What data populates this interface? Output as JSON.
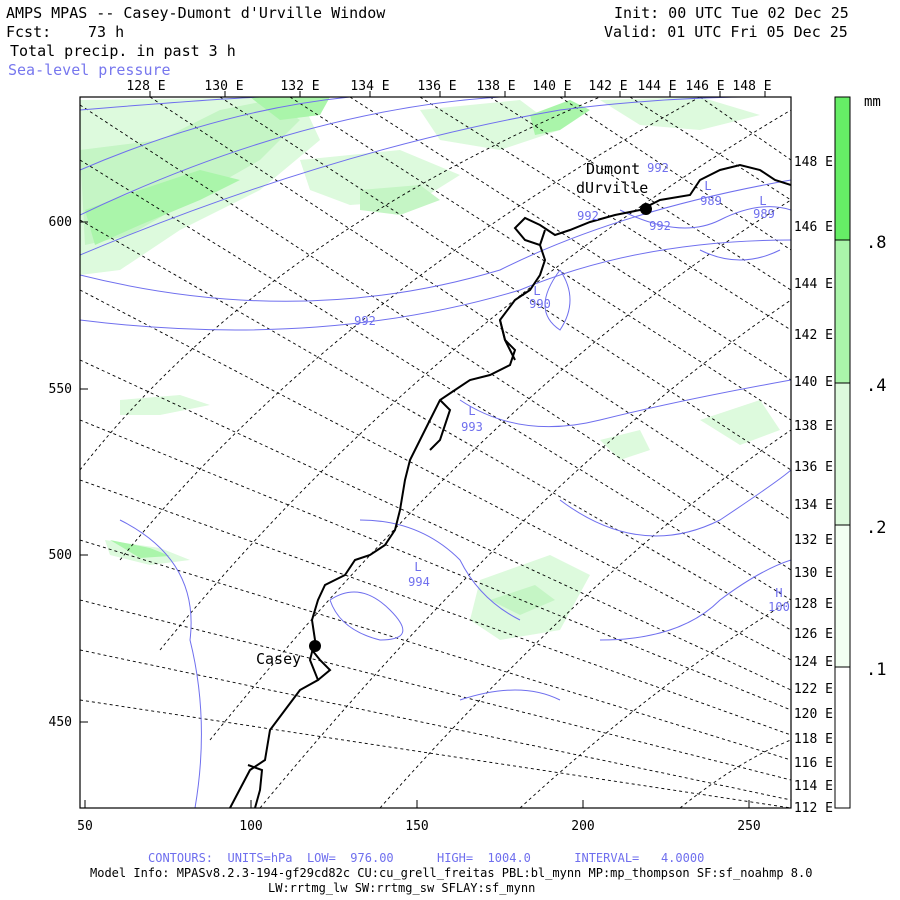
{
  "header": {
    "title": "AMPS MPAS -- Casey-Dumont d'Urville Window",
    "fcst_label": "Fcst:",
    "fcst_value": "73 h",
    "field": "Total precip. in past 3 h",
    "overlay": "Sea-level pressure",
    "init": "Init: 00 UTC Tue 02 Dec 25",
    "valid": "Valid: 01 UTC Fri 05 Dec 25"
  },
  "map": {
    "top_lon_labels": [
      "128 E",
      "130 E",
      "132 E",
      "134 E",
      "136 E",
      "138 E",
      "140 E",
      "142 E",
      "144 E",
      "146 E",
      "148 E"
    ],
    "right_lon_labels": [
      "148 E",
      "146 E",
      "144 E",
      "142 E",
      "140 E",
      "138 E",
      "136 E",
      "134 E",
      "132 E",
      "130 E",
      "128 E",
      "126 E",
      "124 E",
      "122 E",
      "120 E",
      "118 E",
      "116 E",
      "114 E",
      "112 E"
    ],
    "x_ticks": [
      "50",
      "100",
      "150",
      "200",
      "250"
    ],
    "y_ticks": [
      "600",
      "550",
      "500",
      "450"
    ],
    "stations": [
      {
        "name_lines": [
          "Dumont",
          "dUrville"
        ]
      },
      {
        "name_lines": [
          "Casey"
        ]
      }
    ],
    "pressure_labels": [
      {
        "text": "L",
        "value": "990"
      },
      {
        "text": "L",
        "value": "993"
      },
      {
        "text": "L",
        "value": "994"
      },
      {
        "text": "L",
        "value": "989"
      },
      {
        "text": "L",
        "value": "989"
      },
      {
        "text": "H",
        "value": "100"
      }
    ],
    "isobar_values": [
      "992",
      "992",
      "992",
      "992"
    ]
  },
  "colorbar": {
    "unit": "mm",
    "levels": [
      ".8",
      ".4",
      ".2",
      ".1"
    ],
    "colors": [
      "#66ee66",
      "#aaf5aa",
      "#ddfadd",
      "#ffffff"
    ]
  },
  "footer": {
    "contours": "CONTOURS:  UNITS=hPa  LOW=  976.00      HIGH=  1004.0      INTERVAL=   4.0000",
    "model_info": "Model Info: MPASv8.2.3-194-gf29cd82c CU:cu_grell_freitas PBL:bl_mynn MP:mp_thompson SF:sf_noahmp 8.0",
    "model_info2": "LW:rrtmg_lw SW:rrtmg_sw SFLAY:sf_mynn"
  }
}
